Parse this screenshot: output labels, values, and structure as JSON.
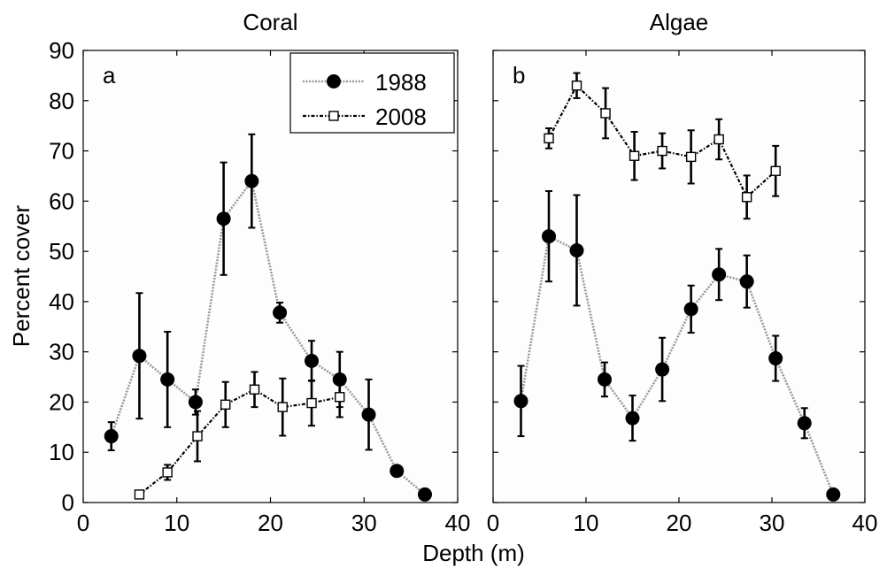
{
  "figure": {
    "xlabel": "Depth (m)",
    "ylabel": "Percent cover"
  },
  "chart_data": [
    {
      "type": "line",
      "title": "Coral",
      "panel_label": "a",
      "xlim": [
        0,
        40
      ],
      "ylim": [
        0,
        90
      ],
      "xticks": [
        0,
        10,
        20,
        30,
        40
      ],
      "yticks": [
        0,
        10,
        20,
        30,
        40,
        50,
        60,
        70,
        80,
        90
      ],
      "show_y_tick_labels": true,
      "legend": {
        "placement": "top-right"
      },
      "series": [
        {
          "name": "1988",
          "marker": "filled-circle",
          "line_style": "dotted-grey",
          "x": [
            3,
            6,
            9,
            12,
            15,
            18,
            21,
            24.4,
            27.4,
            30.5,
            33.5,
            36.5
          ],
          "y": [
            13.2,
            29.2,
            24.5,
            20.0,
            56.5,
            64.0,
            37.8,
            28.2,
            24.5,
            17.5,
            6.3,
            1.6
          ],
          "err": [
            2.8,
            12.5,
            9.5,
            2.5,
            11.2,
            9.3,
            2.0,
            4.0,
            5.5,
            7.0,
            0,
            0
          ]
        },
        {
          "name": "2008",
          "marker": "open-square",
          "line_style": "dash-dot-black",
          "x": [
            6,
            9,
            12.2,
            15.2,
            18.3,
            21.3,
            24.4,
            27.4
          ],
          "y": [
            1.6,
            6.0,
            13.2,
            19.5,
            22.5,
            19.0,
            19.8,
            21.0
          ],
          "err": [
            0.5,
            1.5,
            5.0,
            4.5,
            3.5,
            5.7,
            4.5,
            4.0
          ]
        }
      ]
    },
    {
      "type": "line",
      "title": "Algae",
      "panel_label": "b",
      "xlim": [
        0,
        40
      ],
      "ylim": [
        0,
        90
      ],
      "xticks": [
        0,
        10,
        20,
        30,
        40
      ],
      "yticks": [
        0,
        10,
        20,
        30,
        40,
        50,
        60,
        70,
        80,
        90
      ],
      "show_y_tick_labels": false,
      "series": [
        {
          "name": "1988",
          "marker": "filled-circle",
          "line_style": "dotted-grey",
          "x": [
            3,
            6,
            9,
            12,
            15,
            18.2,
            21.3,
            24.3,
            27.3,
            30.4,
            33.5,
            36.6
          ],
          "y": [
            20.2,
            53.0,
            50.2,
            24.5,
            16.8,
            26.5,
            38.5,
            45.4,
            44.0,
            28.7,
            15.8,
            1.6
          ],
          "err": [
            7.0,
            9.0,
            11.0,
            3.4,
            4.5,
            6.3,
            4.7,
            5.1,
            5.2,
            4.5,
            3.0,
            0
          ]
        },
        {
          "name": "2008",
          "marker": "open-square",
          "line_style": "dash-dot-black",
          "x": [
            6,
            9,
            12.1,
            15.2,
            18.2,
            21.3,
            24.3,
            27.3,
            30.4
          ],
          "y": [
            72.5,
            83.0,
            77.5,
            69.0,
            70.0,
            68.8,
            72.3,
            60.8,
            66.0
          ],
          "err": [
            2.0,
            2.5,
            5.0,
            4.8,
            3.5,
            5.3,
            4.0,
            4.3,
            5.0
          ]
        }
      ]
    }
  ]
}
